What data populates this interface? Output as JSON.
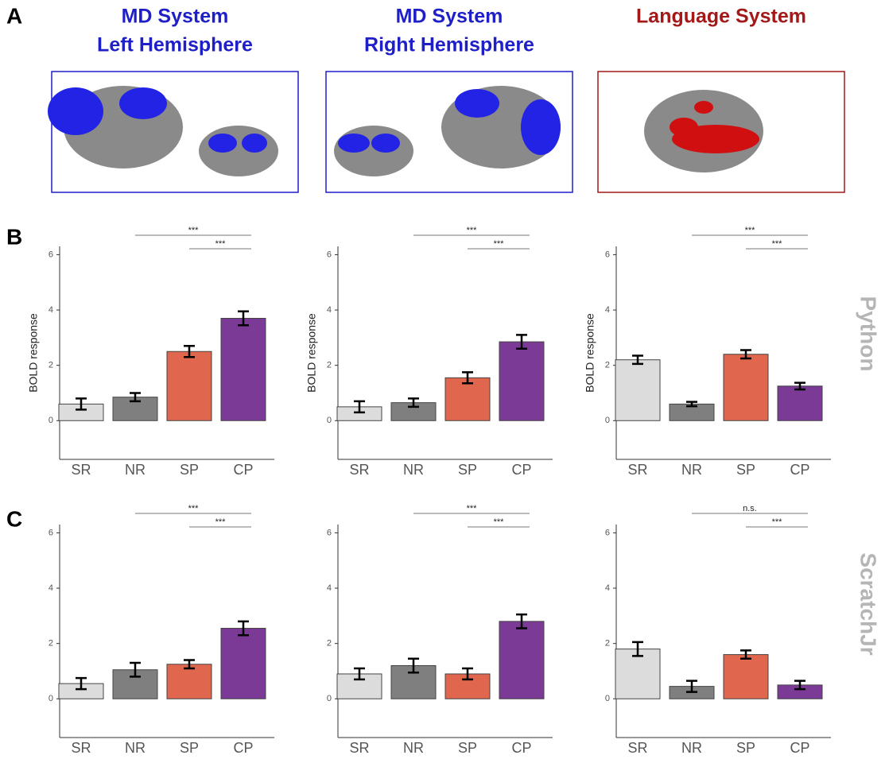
{
  "panel_labels": [
    "A",
    "B",
    "C"
  ],
  "brain_panels": [
    {
      "lines": [
        "MD System",
        "Left Hemisphere"
      ],
      "color": "#1f1fc8",
      "region_color": "#2323e6"
    },
    {
      "lines": [
        "MD System",
        "Right Hemisphere"
      ],
      "color": "#1f1fc8",
      "region_color": "#2323e6"
    },
    {
      "lines": [
        "Language System"
      ],
      "color": "#a31818",
      "region_color": "#d01010"
    }
  ],
  "row_labels": [
    "Python",
    "ScratchJr"
  ],
  "chart_data": [
    {
      "type": "bar",
      "categories": [
        "SR",
        "NR",
        "SP",
        "CP"
      ],
      "values": [
        0.6,
        0.85,
        2.5,
        3.7
      ],
      "errors": [
        0.2,
        0.15,
        0.2,
        0.25
      ],
      "colors": [
        "#dcdcdc",
        "#7f7f7f",
        "#e0664e",
        "#7b3a96"
      ],
      "ylabel": "BOLD response",
      "ylim": [
        -1.4,
        6.3
      ],
      "yticks": [
        0,
        2,
        4,
        6
      ],
      "annotations": [
        {
          "text": "***",
          "from": "NR",
          "to": "CP"
        },
        {
          "text": "***",
          "from": "SP",
          "to": "CP"
        }
      ]
    },
    {
      "type": "bar",
      "categories": [
        "SR",
        "NR",
        "SP",
        "CP"
      ],
      "values": [
        0.5,
        0.65,
        1.55,
        2.85
      ],
      "errors": [
        0.2,
        0.15,
        0.2,
        0.25
      ],
      "colors": [
        "#dcdcdc",
        "#7f7f7f",
        "#e0664e",
        "#7b3a96"
      ],
      "ylabel": "BOLD response",
      "ylim": [
        -1.4,
        6.3
      ],
      "yticks": [
        0,
        2,
        4,
        6
      ],
      "annotations": [
        {
          "text": "***",
          "from": "NR",
          "to": "CP"
        },
        {
          "text": "***",
          "from": "SP",
          "to": "CP"
        }
      ]
    },
    {
      "type": "bar",
      "categories": [
        "SR",
        "NR",
        "SP",
        "CP"
      ],
      "values": [
        2.2,
        0.6,
        2.4,
        1.25
      ],
      "errors": [
        0.15,
        0.08,
        0.15,
        0.12
      ],
      "colors": [
        "#dcdcdc",
        "#7f7f7f",
        "#e0664e",
        "#7b3a96"
      ],
      "ylabel": "BOLD response",
      "ylim": [
        -1.4,
        6.3
      ],
      "yticks": [
        0,
        2,
        4,
        6
      ],
      "annotations": [
        {
          "text": "***",
          "from": "NR",
          "to": "CP"
        },
        {
          "text": "***",
          "from": "SP",
          "to": "CP"
        }
      ]
    },
    {
      "type": "bar",
      "categories": [
        "SR",
        "NR",
        "SP",
        "CP"
      ],
      "values": [
        0.55,
        1.05,
        1.25,
        2.55
      ],
      "errors": [
        0.2,
        0.25,
        0.15,
        0.25
      ],
      "colors": [
        "#dcdcdc",
        "#7f7f7f",
        "#e0664e",
        "#7b3a96"
      ],
      "ylim": [
        -1.4,
        6.3
      ],
      "yticks": [
        0,
        2,
        4,
        6
      ],
      "annotations": [
        {
          "text": "***",
          "from": "NR",
          "to": "CP"
        },
        {
          "text": "***",
          "from": "SP",
          "to": "CP"
        }
      ]
    },
    {
      "type": "bar",
      "categories": [
        "SR",
        "NR",
        "SP",
        "CP"
      ],
      "values": [
        0.9,
        1.2,
        0.9,
        2.8
      ],
      "errors": [
        0.2,
        0.25,
        0.2,
        0.25
      ],
      "colors": [
        "#dcdcdc",
        "#7f7f7f",
        "#e0664e",
        "#7b3a96"
      ],
      "ylim": [
        -1.4,
        6.3
      ],
      "yticks": [
        0,
        2,
        4,
        6
      ],
      "annotations": [
        {
          "text": "***",
          "from": "NR",
          "to": "CP"
        },
        {
          "text": "***",
          "from": "SP",
          "to": "CP"
        }
      ]
    },
    {
      "type": "bar",
      "categories": [
        "SR",
        "NR",
        "SP",
        "CP"
      ],
      "values": [
        1.8,
        0.45,
        1.6,
        0.5
      ],
      "errors": [
        0.25,
        0.2,
        0.15,
        0.15
      ],
      "colors": [
        "#dcdcdc",
        "#7f7f7f",
        "#e0664e",
        "#7b3a96"
      ],
      "ylim": [
        -1.4,
        6.3
      ],
      "yticks": [
        0,
        2,
        4,
        6
      ],
      "annotations": [
        {
          "text": "n.s.",
          "from": "NR",
          "to": "CP"
        },
        {
          "text": "***",
          "from": "SP",
          "to": "CP"
        }
      ]
    }
  ]
}
